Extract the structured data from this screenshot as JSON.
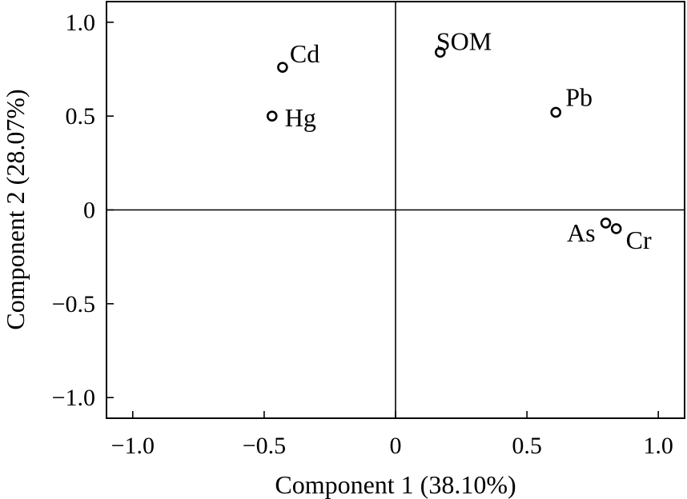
{
  "chart_data": {
    "type": "scatter",
    "xlabel": "Component 1 (38.10%)",
    "ylabel": "Component 2 (28.07%)",
    "xlim": [
      -1.1,
      1.1
    ],
    "ylim": [
      -1.11,
      1.11
    ],
    "xticks": [
      -1.0,
      -0.5,
      0,
      0.5,
      1.0
    ],
    "xtick_labels": [
      "−1.0",
      "−0.5",
      "0",
      "0.5",
      "1.0"
    ],
    "yticks": [
      1.0,
      0.5,
      0,
      -0.5,
      -1.0
    ],
    "ytick_labels": [
      "1.0",
      "0.5",
      "0",
      "−0.5",
      "−1.0"
    ],
    "grid": false,
    "reference_lines": {
      "x": 0,
      "y": 0
    },
    "points": [
      {
        "label": "Cd",
        "x": -0.43,
        "y": 0.76
      },
      {
        "label": "Hg",
        "x": -0.47,
        "y": 0.5
      },
      {
        "label": "SOM",
        "x": 0.17,
        "y": 0.84
      },
      {
        "label": "Pb",
        "x": 0.61,
        "y": 0.52
      },
      {
        "label": "As",
        "x": 0.8,
        "y": -0.07
      },
      {
        "label": "Cr",
        "x": 0.84,
        "y": -0.1
      }
    ]
  }
}
